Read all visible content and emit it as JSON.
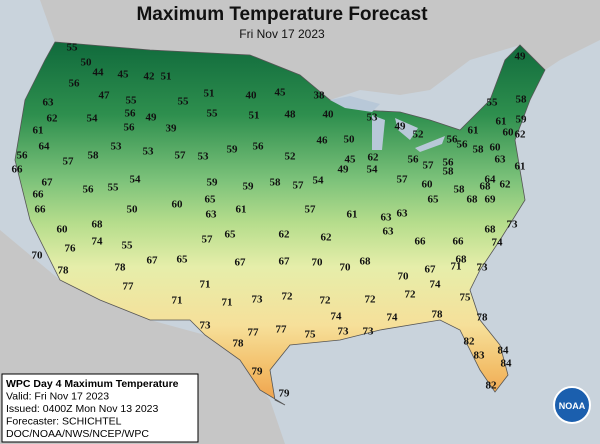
{
  "title": "Maximum Temperature Forecast",
  "subtitle": "Fri Nov 17 2023",
  "legend": {
    "lines": [
      "WPC Day 4 Maximum Temperature",
      "Valid: Fri Nov 17 2023",
      "Issued: 0400Z Mon Nov 13 2023",
      "Forecaster: SCHICHTEL",
      "DOC/NOAA/NWS/NCEP/WPC"
    ]
  },
  "logo": "NOAA",
  "temperatures": [
    55,
    50,
    44,
    45,
    42,
    51,
    56,
    47,
    55,
    55,
    51,
    40,
    45,
    38,
    49,
    63,
    62,
    54,
    56,
    49,
    39,
    55,
    51,
    48,
    40,
    53,
    49,
    55,
    58,
    59,
    61,
    64,
    56,
    57,
    58,
    56,
    53,
    53,
    57,
    53,
    59,
    56,
    52,
    46,
    50,
    62,
    45,
    56,
    57,
    56,
    52,
    56,
    56,
    61,
    58,
    60,
    61,
    60,
    62,
    63,
    64,
    62,
    61,
    66,
    67,
    66,
    55,
    56,
    54,
    59,
    59,
    58,
    57,
    54,
    49,
    54,
    57,
    60,
    58,
    58,
    68,
    68,
    69,
    73,
    65,
    60,
    63,
    61,
    50,
    57,
    61,
    63,
    63,
    65,
    66,
    68,
    65,
    62,
    62,
    63,
    57,
    68,
    66,
    66,
    68,
    74,
    60,
    74,
    55,
    70,
    76,
    78,
    78,
    67,
    65,
    67,
    67,
    70,
    70,
    68,
    70,
    67,
    71,
    73,
    77,
    71,
    71,
    71,
    73,
    72,
    72,
    72,
    72,
    74,
    73,
    77,
    77,
    75,
    74,
    73,
    73,
    74,
    78,
    78,
    75,
    78,
    82,
    83,
    84,
    84,
    79,
    79,
    82
  ]
}
